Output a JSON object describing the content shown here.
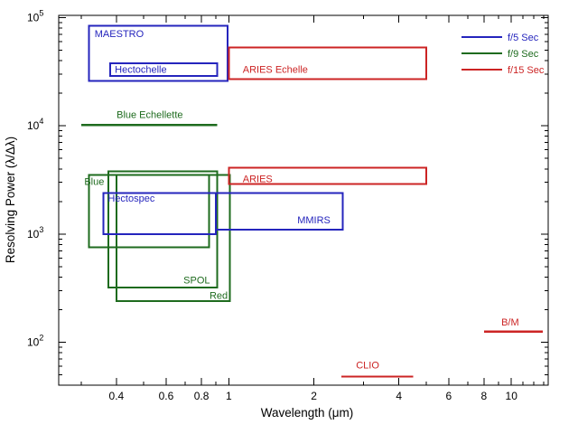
{
  "chart_data": {
    "type": "range-box log-log coverage chart",
    "title": "",
    "xlabel": "Wavelength (μm)",
    "ylabel": "Resolving Power (λ/Δλ)",
    "x_scale": "log",
    "y_scale": "log",
    "xlim": [
      0.25,
      13.5
    ],
    "ylim": [
      40,
      105000
    ],
    "grid": false,
    "x_major_ticks": [
      {
        "value": 0.4,
        "label": "0.4"
      },
      {
        "value": 0.6,
        "label": "0.6"
      },
      {
        "value": 0.8,
        "label": "0.8"
      },
      {
        "value": 1,
        "label": "1"
      },
      {
        "value": 2,
        "label": "2"
      },
      {
        "value": 4,
        "label": "4"
      },
      {
        "value": 6,
        "label": "6"
      },
      {
        "value": 8,
        "label": "8"
      },
      {
        "value": 10,
        "label": "10"
      }
    ],
    "x_minor_ticks": [
      0.3,
      0.5,
      0.7,
      0.9,
      3,
      5,
      7,
      9,
      11,
      12,
      13
    ],
    "y_major_ticks": [
      {
        "value": 100,
        "mantissa": "10",
        "exponent": "2"
      },
      {
        "value": 1000,
        "mantissa": "10",
        "exponent": "3"
      },
      {
        "value": 10000,
        "mantissa": "10",
        "exponent": "4"
      },
      {
        "value": 100000,
        "mantissa": "10",
        "exponent": "5"
      }
    ],
    "y_minor_ticks": [
      50,
      60,
      70,
      80,
      90,
      200,
      300,
      400,
      500,
      600,
      700,
      800,
      900,
      2000,
      3000,
      4000,
      5000,
      6000,
      7000,
      8000,
      9000,
      20000,
      30000,
      40000,
      50000,
      60000,
      70000,
      80000,
      90000
    ],
    "colors": {
      "blue": "#2525bd",
      "green": "#1e6b1e",
      "red": "#cc2424",
      "axis": "#000000"
    },
    "legend": {
      "position": "top-right",
      "entries": [
        {
          "label": "f/5 Sec",
          "color_key": "blue"
        },
        {
          "label": "f/9 Sec",
          "color_key": "green"
        },
        {
          "label": "f/15 Sec",
          "color_key": "red"
        }
      ]
    },
    "instruments": [
      {
        "name": "MAESTRO",
        "shape": "box",
        "color_key": "blue",
        "lambda_um": [
          0.32,
          0.99
        ],
        "resolving_power": [
          26000,
          84000
        ],
        "label": {
          "text": "MAESTRO",
          "lambda": 0.335,
          "R": 66000,
          "anchor": "start"
        }
      },
      {
        "name": "Hectochelle",
        "shape": "box",
        "color_key": "blue",
        "lambda_um": [
          0.38,
          0.91
        ],
        "resolving_power": [
          29000,
          38000
        ],
        "label": {
          "text": "Hectochelle",
          "lambda": 0.395,
          "R": 31000,
          "anchor": "start"
        }
      },
      {
        "name": "ARIES Echelle",
        "shape": "box",
        "color_key": "red",
        "lambda_um": [
          1.0,
          5.0
        ],
        "resolving_power": [
          27000,
          53000
        ],
        "label": {
          "text": "ARIES Echelle",
          "lambda": 1.12,
          "R": 31000,
          "anchor": "start"
        }
      },
      {
        "name": "Blue Echellette",
        "shape": "line",
        "color_key": "green",
        "lambda_um": [
          0.3,
          0.91
        ],
        "resolving_power": 10200,
        "label": {
          "text": "Blue Echellette",
          "lambda": 0.525,
          "R": 11800,
          "anchor": "middle"
        }
      },
      {
        "name": "Blue",
        "shape": "box",
        "color_key": "green",
        "lambda_um": [
          0.32,
          0.85
        ],
        "resolving_power": [
          750,
          3500
        ],
        "label": {
          "text": "Blue",
          "lambda": 0.308,
          "R": 2850,
          "anchor": "start"
        }
      },
      {
        "name": "SPOL",
        "shape": "box",
        "color_key": "green",
        "lambda_um": [
          0.375,
          0.91
        ],
        "resolving_power": [
          320,
          3800
        ],
        "label": {
          "text": "SPOL",
          "lambda": 0.77,
          "R": 350,
          "anchor": "middle"
        }
      },
      {
        "name": "Red",
        "shape": "box",
        "color_key": "green",
        "lambda_um": [
          0.4,
          1.01
        ],
        "resolving_power": [
          240,
          3500
        ],
        "label": {
          "text": "Red",
          "lambda": 0.92,
          "R": 252,
          "anchor": "middle"
        }
      },
      {
        "name": "Hectospec",
        "shape": "box",
        "color_key": "blue",
        "lambda_um": [
          0.36,
          0.9
        ],
        "resolving_power": [
          1000,
          2400
        ],
        "label": {
          "text": "Hectospec",
          "lambda": 0.373,
          "R": 2000,
          "anchor": "start"
        }
      },
      {
        "name": "MMIRS",
        "shape": "box",
        "color_key": "blue",
        "lambda_um": [
          0.9,
          2.53
        ],
        "resolving_power": [
          1100,
          2400
        ],
        "label": {
          "text": "MMIRS",
          "lambda": 2.0,
          "R": 1260,
          "anchor": "middle"
        }
      },
      {
        "name": "ARIES",
        "shape": "box",
        "color_key": "red",
        "lambda_um": [
          1.0,
          5.0
        ],
        "resolving_power": [
          2900,
          4100
        ],
        "label": {
          "text": "ARIES",
          "lambda": 1.12,
          "R": 3000,
          "anchor": "start"
        }
      },
      {
        "name": "CLIO",
        "shape": "line",
        "color_key": "red",
        "lambda_um": [
          2.5,
          4.5
        ],
        "resolving_power": 48,
        "label": {
          "text": "CLIO",
          "lambda": 3.1,
          "R": 57,
          "anchor": "middle"
        }
      },
      {
        "name": "B/M",
        "shape": "line",
        "color_key": "red",
        "lambda_um": [
          8.0,
          12.9
        ],
        "resolving_power": 125,
        "label": {
          "text": "B/M",
          "lambda": 9.9,
          "R": 142,
          "anchor": "middle"
        }
      }
    ]
  }
}
